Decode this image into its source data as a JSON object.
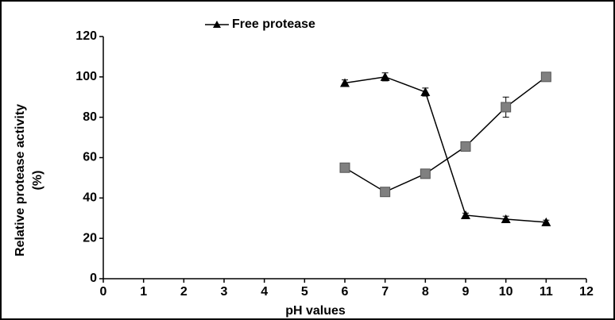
{
  "chart_data": {
    "type": "line",
    "xlabel": "pH values",
    "ylabel": [
      "Relative protease  activity",
      "(%)"
    ],
    "x": [
      6,
      7,
      8,
      9,
      10,
      11
    ],
    "series": [
      {
        "name": "Free protease",
        "color": "#000000",
        "marker": "triangle",
        "values": [
          97,
          100,
          92.5,
          31.5,
          29.5,
          28
        ],
        "errors": [
          1.5,
          2,
          2,
          1,
          1.5,
          1
        ]
      },
      {
        "color": "#808080",
        "marker": "square",
        "values": [
          55,
          43,
          52,
          65.5,
          85,
          100
        ],
        "errors": [
          1,
          1,
          1,
          1,
          5,
          1
        ]
      }
    ],
    "xlim": [
      0,
      12
    ],
    "xticks": [
      0,
      1,
      2,
      3,
      4,
      5,
      6,
      7,
      8,
      9,
      10,
      11,
      12
    ],
    "ylim": [
      0,
      120
    ],
    "yticks": [
      0,
      20,
      40,
      60,
      80,
      100,
      120
    ],
    "grid": false,
    "legend": "top"
  }
}
